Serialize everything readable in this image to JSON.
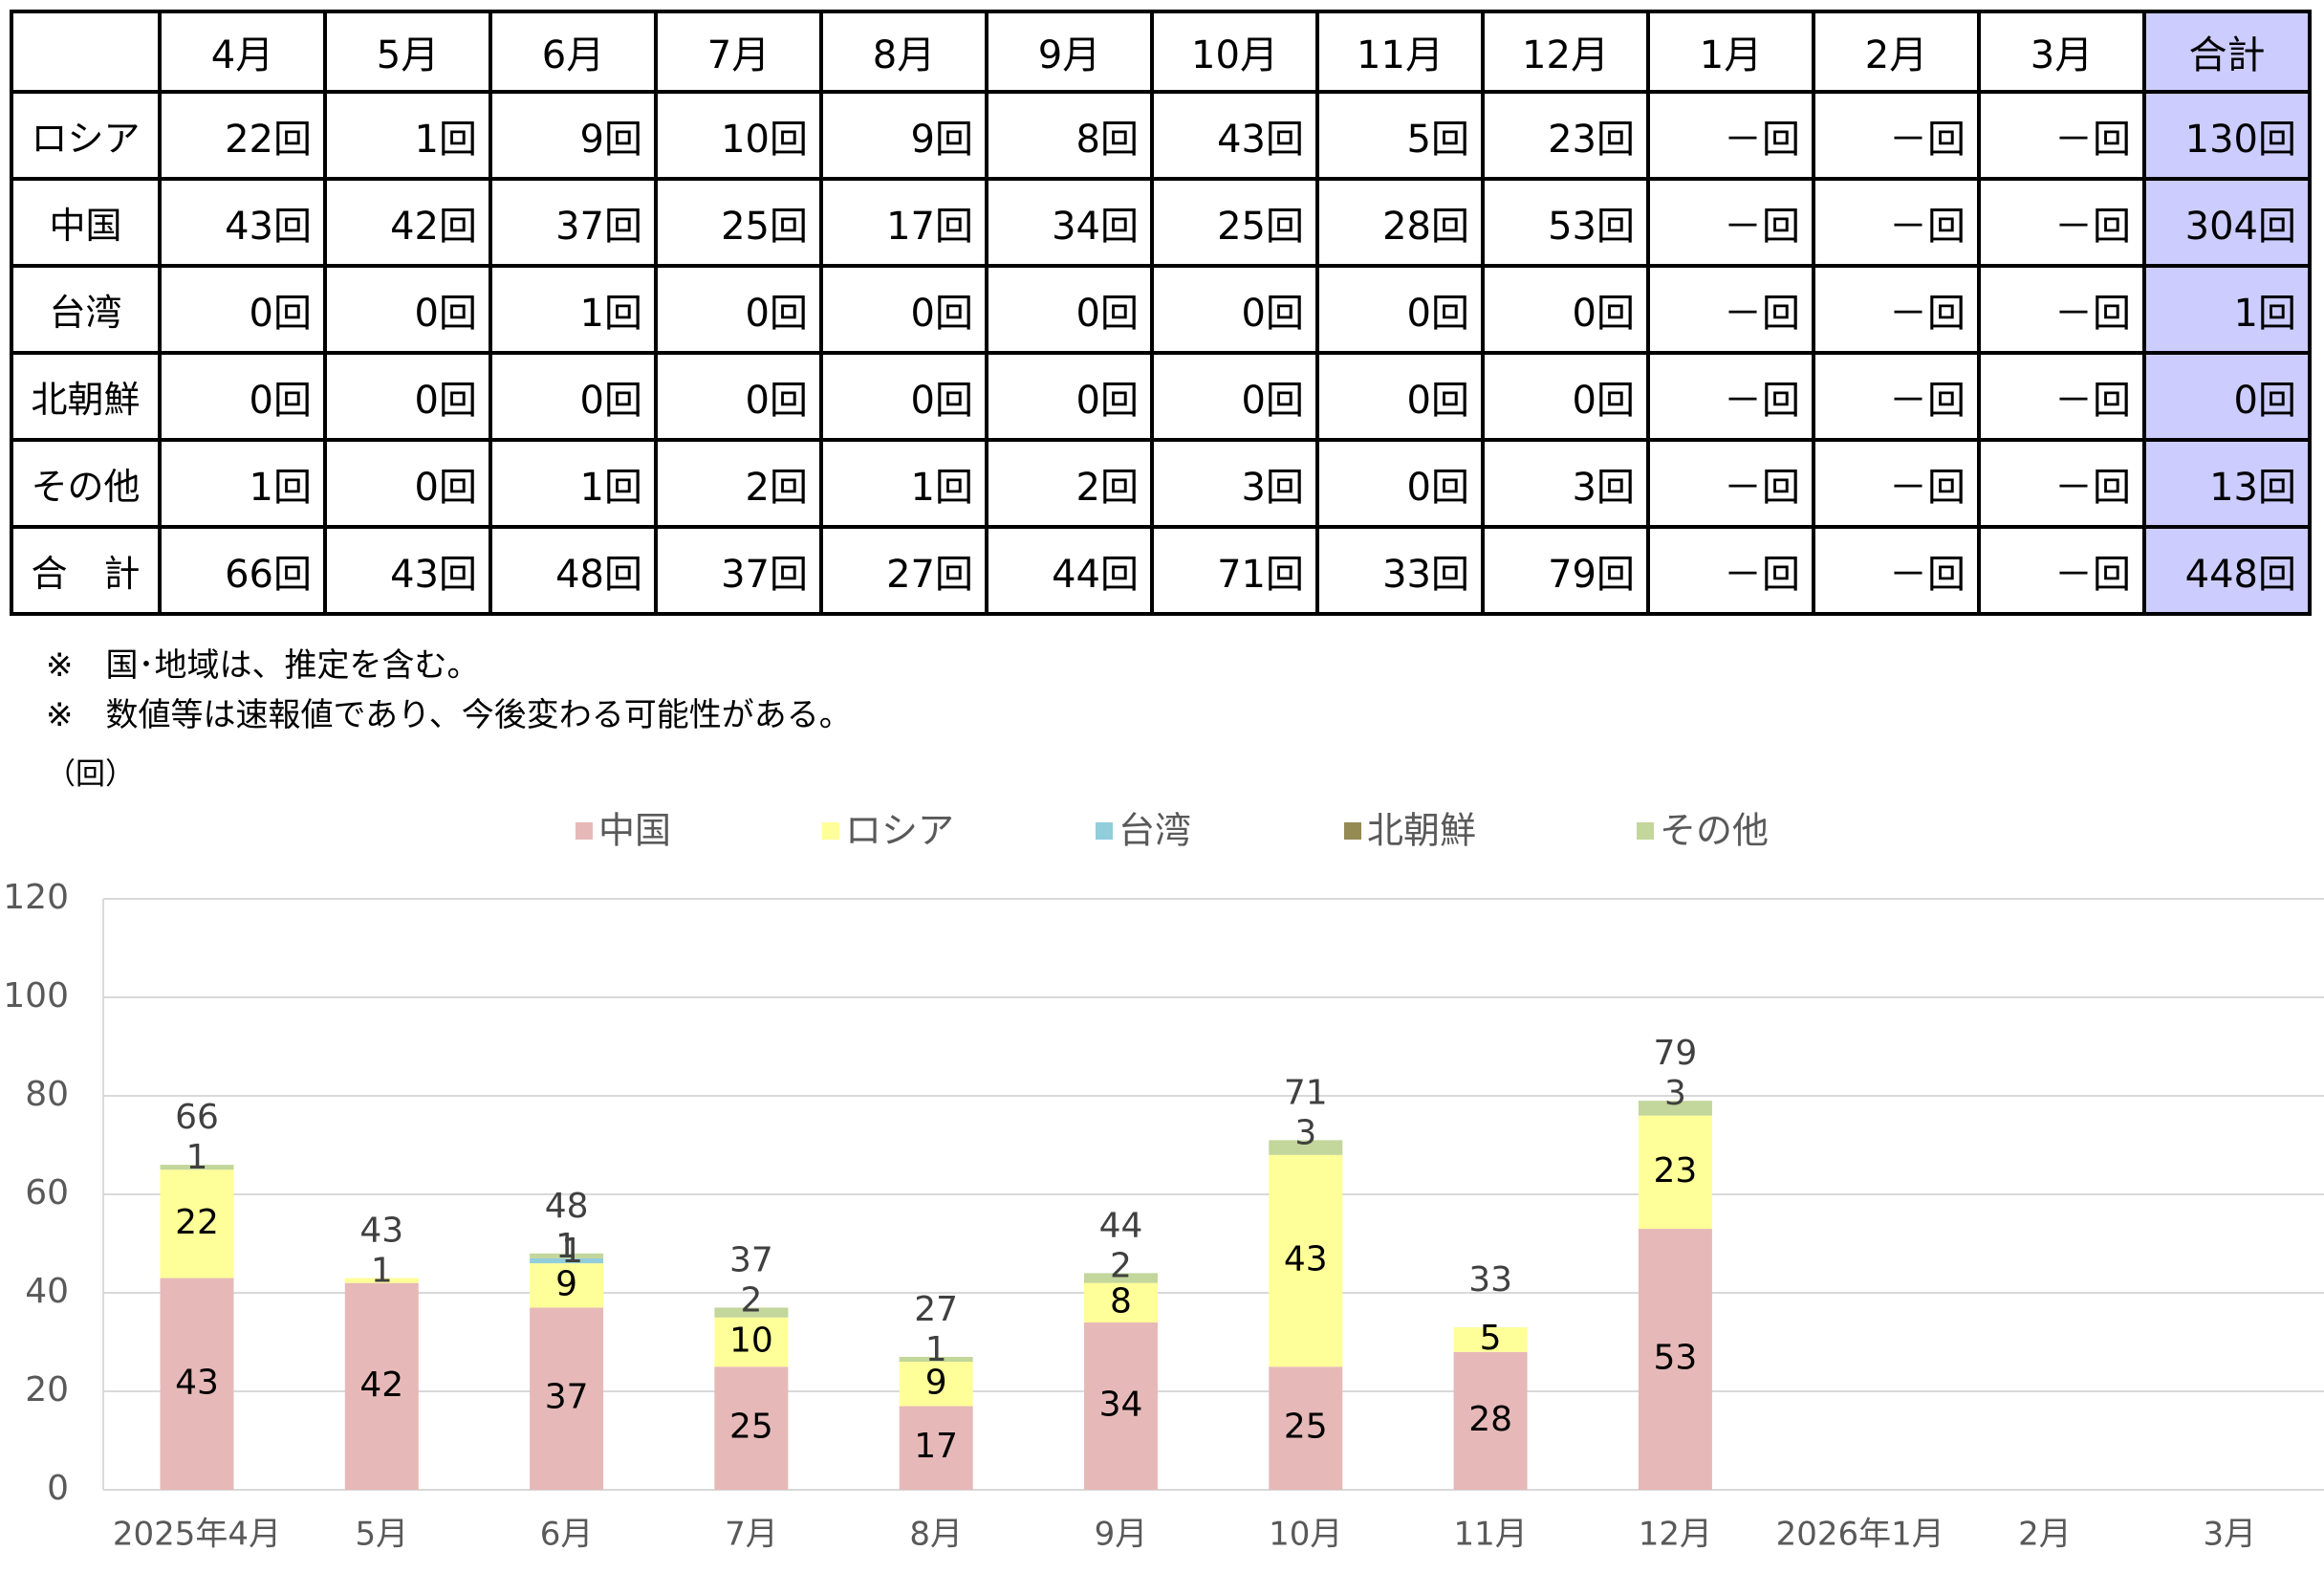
{
  "table": {
    "corner": "",
    "headers": [
      "4月",
      "5月",
      "6月",
      "7月",
      "8月",
      "9月",
      "10月",
      "11月",
      "12月",
      "1月",
      "2月",
      "3月",
      "合計"
    ],
    "rows": [
      {
        "label": "ロシア",
        "cells": [
          "22回",
          "1回",
          "9回",
          "10回",
          "9回",
          "8回",
          "43回",
          "5回",
          "23回",
          "－回",
          "－回",
          "－回",
          "130回"
        ]
      },
      {
        "label": "中国",
        "cells": [
          "43回",
          "42回",
          "37回",
          "25回",
          "17回",
          "34回",
          "25回",
          "28回",
          "53回",
          "－回",
          "－回",
          "－回",
          "304回"
        ]
      },
      {
        "label": "台湾",
        "cells": [
          "0回",
          "0回",
          "1回",
          "0回",
          "0回",
          "0回",
          "0回",
          "0回",
          "0回",
          "－回",
          "－回",
          "－回",
          "1回"
        ]
      },
      {
        "label": "北朝鮮",
        "cells": [
          "0回",
          "0回",
          "0回",
          "0回",
          "0回",
          "0回",
          "0回",
          "0回",
          "0回",
          "－回",
          "－回",
          "－回",
          "0回"
        ]
      },
      {
        "label": "その他",
        "cells": [
          "1回",
          "0回",
          "1回",
          "2回",
          "1回",
          "2回",
          "3回",
          "0回",
          "3回",
          "－回",
          "－回",
          "－回",
          "13回"
        ]
      },
      {
        "label": "合　計",
        "cells": [
          "66回",
          "43回",
          "48回",
          "37回",
          "27回",
          "44回",
          "71回",
          "33回",
          "79回",
          "－回",
          "－回",
          "－回",
          "448回"
        ]
      }
    ],
    "total_col_color": "#ccccff"
  },
  "notes": [
    "※　国･地域は、推定を含む。",
    "※　数値等は速報値であり、今後変わる可能性がある。"
  ],
  "unit_label": "（回）",
  "chart_data": {
    "type": "bar",
    "stacked": true,
    "categories": [
      "2025年4月",
      "5月",
      "6月",
      "7月",
      "8月",
      "9月",
      "10月",
      "11月",
      "12月",
      "2026年1月",
      "2月",
      "3月"
    ],
    "series": [
      {
        "name": "中国",
        "color": "#e6b9b8",
        "values": [
          43,
          42,
          37,
          25,
          17,
          34,
          25,
          28,
          53,
          null,
          null,
          null
        ]
      },
      {
        "name": "ロシア",
        "color": "#ffff99",
        "values": [
          22,
          1,
          9,
          10,
          9,
          8,
          43,
          5,
          23,
          null,
          null,
          null
        ]
      },
      {
        "name": "台湾",
        "color": "#92cddc",
        "values": [
          0,
          0,
          1,
          0,
          0,
          0,
          0,
          0,
          0,
          null,
          null,
          null
        ]
      },
      {
        "name": "北朝鮮",
        "color": "#948a54",
        "values": [
          0,
          0,
          0,
          0,
          0,
          0,
          0,
          0,
          0,
          null,
          null,
          null
        ]
      },
      {
        "name": "その他",
        "color": "#c3d69b",
        "values": [
          1,
          0,
          1,
          2,
          1,
          2,
          3,
          0,
          3,
          null,
          null,
          null
        ]
      }
    ],
    "totals": [
      66,
      43,
      48,
      37,
      27,
      44,
      71,
      33,
      79,
      null,
      null,
      null
    ],
    "ylim": [
      0,
      120
    ],
    "yticks": [
      0,
      20,
      40,
      60,
      80,
      100,
      120
    ],
    "grid": true,
    "legend_position": "top"
  }
}
